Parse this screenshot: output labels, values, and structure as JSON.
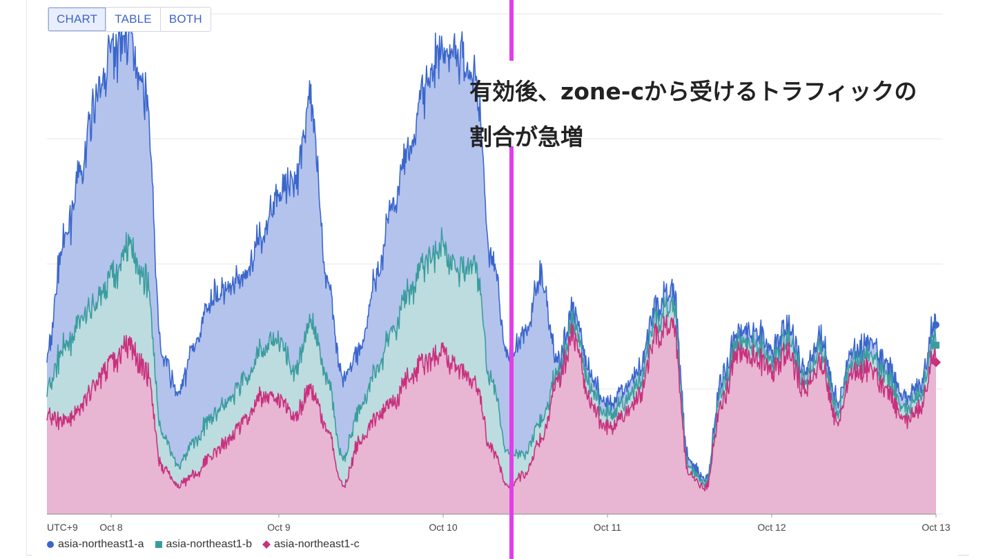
{
  "toggle": {
    "options": [
      "CHART",
      "TABLE",
      "BOTH"
    ],
    "active": "CHART"
  },
  "annotation": {
    "text": "有効後、zone-cから受けるトラフィックの\n割合が急増"
  },
  "colors": {
    "series_a_line": "#3a66cc",
    "series_a_fill": "#b3c3ec",
    "series_b_line": "#3b9c9e",
    "series_b_fill": "#bcdcdf",
    "series_c_line": "#c9307d",
    "series_c_fill": "#e8b5d3",
    "marker_line": "#e23ee8",
    "grid": "#e6e6e6"
  },
  "chart_data": {
    "type": "area",
    "stacked": true,
    "timezone_label": "UTC+9",
    "x_ticks": [
      "Oct 8",
      "Oct 9",
      "Oct 10",
      "Oct 11",
      "Oct 12",
      "Oct 13"
    ],
    "x": [
      0,
      0.1,
      0.2,
      0.3,
      0.4,
      0.5,
      0.6,
      0.7,
      0.8,
      0.9,
      1,
      1.1,
      1.2,
      1.3,
      1.4,
      1.5,
      1.6,
      1.7,
      1.8,
      1.9,
      2,
      2.1,
      2.2,
      2.3,
      2.4,
      2.5,
      2.6,
      2.7,
      2.8,
      2.9,
      3,
      3.1,
      3.2,
      3.3,
      3.4,
      3.5,
      3.6,
      3.7,
      3.8,
      3.9,
      4,
      4.1,
      4.2,
      4.3,
      4.4,
      4.5,
      4.6,
      4.7,
      4.8,
      4.9,
      5,
      5.1,
      5.2,
      5.3,
      5.4
    ],
    "x_unit": "days since start of Oct 7 tick frame (Oct 8 = 0.24)",
    "ylim": [
      0,
      3.8
    ],
    "series": [
      {
        "name": "asia-northeast1-c",
        "values": [
          0.75,
          0.7,
          0.8,
          1.0,
          1.15,
          1.28,
          1.1,
          0.35,
          0.22,
          0.3,
          0.45,
          0.55,
          0.7,
          0.88,
          0.88,
          0.75,
          0.95,
          0.65,
          0.22,
          0.55,
          0.75,
          0.85,
          1.05,
          1.15,
          1.2,
          1.1,
          1.0,
          0.5,
          0.22,
          0.3,
          0.55,
          1.0,
          1.35,
          0.85,
          0.65,
          0.75,
          0.9,
          1.35,
          1.45,
          0.3,
          0.2,
          0.85,
          1.25,
          1.2,
          1.1,
          1.22,
          0.95,
          1.15,
          0.7,
          1.1,
          1.1,
          0.95,
          0.7,
          0.8,
          1.25
        ]
      },
      {
        "name": "asia-northeast1-b",
        "values": [
          0.2,
          0.55,
          0.65,
          0.6,
          0.65,
          0.75,
          0.7,
          0.25,
          0.15,
          0.25,
          0.3,
          0.3,
          0.3,
          0.35,
          0.45,
          0.35,
          0.5,
          0.4,
          0.2,
          0.25,
          0.35,
          0.55,
          0.65,
          0.75,
          0.8,
          0.75,
          0.9,
          0.5,
          0.25,
          0.15,
          0.15,
          0.05,
          0.1,
          0.12,
          0.1,
          0.1,
          0.1,
          0.12,
          0.15,
          0.05,
          0.03,
          0.1,
          0.08,
          0.1,
          0.08,
          0.1,
          0.08,
          0.1,
          0.08,
          0.08,
          0.1,
          0.1,
          0.08,
          0.1,
          0.12
        ]
      },
      {
        "name": "asia-northeast1-a",
        "values": [
          0.25,
          0.8,
          1.1,
          1.55,
          1.7,
          1.6,
          1.4,
          0.6,
          0.55,
          0.75,
          0.9,
          0.85,
          0.8,
          0.85,
          1.1,
          1.45,
          1.65,
          0.75,
          0.6,
          0.45,
          0.7,
          0.95,
          1.1,
          1.35,
          1.5,
          1.65,
          1.4,
          0.95,
          0.75,
          0.9,
          1.1,
          0.1,
          0.1,
          0.1,
          0.08,
          0.1,
          0.1,
          0.1,
          0.12,
          0.05,
          0.03,
          0.08,
          0.07,
          0.1,
          0.08,
          0.1,
          0.08,
          0.1,
          0.08,
          0.08,
          0.1,
          0.1,
          0.08,
          0.08,
          0.12
        ]
      }
    ],
    "vertical_marker_x": 2.83,
    "grid": true,
    "legend_position": "bottom-left"
  }
}
